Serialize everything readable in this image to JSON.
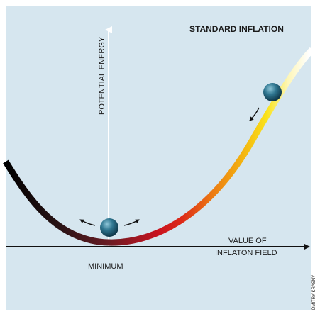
{
  "diagram": {
    "title": "STANDARD INFLATION",
    "y_axis_label": "POTENTIAL ENERGY",
    "x_axis_label_line1": "VALUE OF",
    "x_axis_label_line2": "INFLATON FIELD",
    "minimum_label": "MINIMUM",
    "credit": "DMITRY KRASNY",
    "colors": {
      "panel_background": "#d6e6ef",
      "axis": "#111111",
      "y_axis_arrow": "#ffffff",
      "curve_gradient": [
        "#000000",
        "#3a1a1a",
        "#a5182a",
        "#d8101c",
        "#e8561a",
        "#f08c10",
        "#f6c410",
        "#fbe81e",
        "#fdf8c0",
        "#ffffff"
      ],
      "ball": "#1f5f78"
    },
    "icons": [
      "ball",
      "roll-arrow-left",
      "roll-arrow-right",
      "roll-down-arrow"
    ]
  }
}
